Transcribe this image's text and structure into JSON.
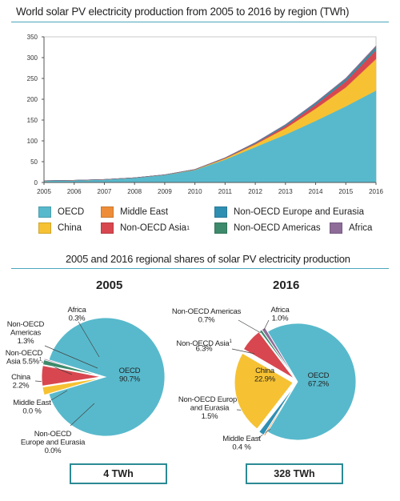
{
  "colors": {
    "OECD": "#58b9cc",
    "China": "#f6c233",
    "Middle East": "#ee8d39",
    "Non-OECD Asia": "#d8474f",
    "Non-OECD Europe and Eurasia": "#2f8fb3",
    "Non-OECD Americas": "#3d8a6c",
    "Africa": "#8e6c98",
    "rule": "#4aa6bb",
    "box_border": "#2c8a94"
  },
  "legend": [
    {
      "key": "OECD",
      "label": "OECD"
    },
    {
      "key": "Middle East",
      "label": "Middle East"
    },
    {
      "key": "Non-OECD Europe and Eurasia",
      "label": "Non-OECD Europe and Eurasia"
    },
    {
      "key": "China",
      "label": "China"
    },
    {
      "key": "Non-OECD Asia",
      "label": "Non-OECD Asia"
    },
    {
      "key": "Non-OECD Americas",
      "label": "Non-OECD Americas"
    },
    {
      "key": "Africa",
      "label": "Africa"
    }
  ],
  "legend_superscript": "1",
  "section2_title": "2005 and 2016 regional shares of solar PV electricity production",
  "chart_data": [
    {
      "type": "area",
      "stacked": true,
      "title": "World solar PV electricity production from 2005 to 2016 by region (TWh)",
      "x": [
        2005,
        2006,
        2007,
        2008,
        2009,
        2010,
        2011,
        2012,
        2013,
        2014,
        2015,
        2016
      ],
      "ylim": [
        0,
        350
      ],
      "yticks": [
        0,
        50,
        100,
        150,
        200,
        250,
        300,
        350
      ],
      "grid": false,
      "series": [
        {
          "name": "OECD",
          "values": [
            4,
            5,
            7,
            11,
            18,
            30,
            55,
            85,
            115,
            148,
            183,
            221
          ]
        },
        {
          "name": "China",
          "values": [
            0.1,
            0.1,
            0.1,
            0.2,
            0.3,
            0.7,
            2.6,
            6.5,
            15,
            29,
            45,
            75
          ]
        },
        {
          "name": "Middle East",
          "values": [
            0,
            0,
            0,
            0,
            0,
            0.1,
            0.2,
            0.3,
            0.5,
            0.8,
            1,
            1.3
          ]
        },
        {
          "name": "Non-OECD Asia",
          "values": [
            0.2,
            0.2,
            0.2,
            0.2,
            0.3,
            0.5,
            1,
            2,
            5,
            9,
            14,
            20.7
          ]
        },
        {
          "name": "Non-OECD Europe and Eurasia",
          "values": [
            0,
            0,
            0,
            0,
            0,
            0.1,
            0.4,
            1.5,
            2.5,
            3.5,
            4.2,
            4.9
          ]
        },
        {
          "name": "Non-OECD Americas",
          "values": [
            0.05,
            0.05,
            0.05,
            0.05,
            0.05,
            0.1,
            0.2,
            0.3,
            0.5,
            0.8,
            1.4,
            2.3
          ]
        },
        {
          "name": "Africa",
          "values": [
            0,
            0,
            0,
            0,
            0,
            0.1,
            0.2,
            0.5,
            1,
            1.6,
            2.3,
            3.3
          ]
        }
      ]
    },
    {
      "type": "pie",
      "title": "2005",
      "total": "4 TWh",
      "slices": [
        {
          "name": "OECD",
          "value": 90.7,
          "label": "OECD\n90.7%"
        },
        {
          "name": "Middle East",
          "value": 0.0,
          "label": "Middle East\n0.0 %"
        },
        {
          "name": "China",
          "value": 2.2,
          "label": "China\n2.2%"
        },
        {
          "name": "Non-OECD Asia",
          "value": 5.5,
          "label": "Non-OECD\nAsia 5.5%"
        },
        {
          "name": "Non-OECD Americas",
          "value": 1.3,
          "label": "Non-OECD\nAmericas\n1.3%"
        },
        {
          "name": "Africa",
          "value": 0.3,
          "label": "Africa\n0.3%"
        },
        {
          "name": "Non-OECD Europe and Eurasia",
          "value": 0.0,
          "label": "Non-OECD\nEurope and Eurasia\n0.0%"
        }
      ]
    },
    {
      "type": "pie",
      "title": "2016",
      "total": "328 TWh",
      "slices": [
        {
          "name": "OECD",
          "value": 67.2,
          "label": "OECD\n67.2%"
        },
        {
          "name": "Middle East",
          "value": 0.4,
          "label": "Middle East\n0.4 %"
        },
        {
          "name": "Non-OECD Europe and Eurasia",
          "value": 1.5,
          "label": "Non-OECD Europe\nand Eurasia\n1.5%"
        },
        {
          "name": "China",
          "value": 22.9,
          "label": "China\n22.9%"
        },
        {
          "name": "Non-OECD Asia",
          "value": 6.3,
          "label": "Non-OECD Asia\n6.3%"
        },
        {
          "name": "Non-OECD Americas",
          "value": 0.7,
          "label": "Non-OECD Americas\n0.7%"
        },
        {
          "name": "Africa",
          "value": 1.0,
          "label": "Africa\n1.0%"
        }
      ]
    }
  ]
}
